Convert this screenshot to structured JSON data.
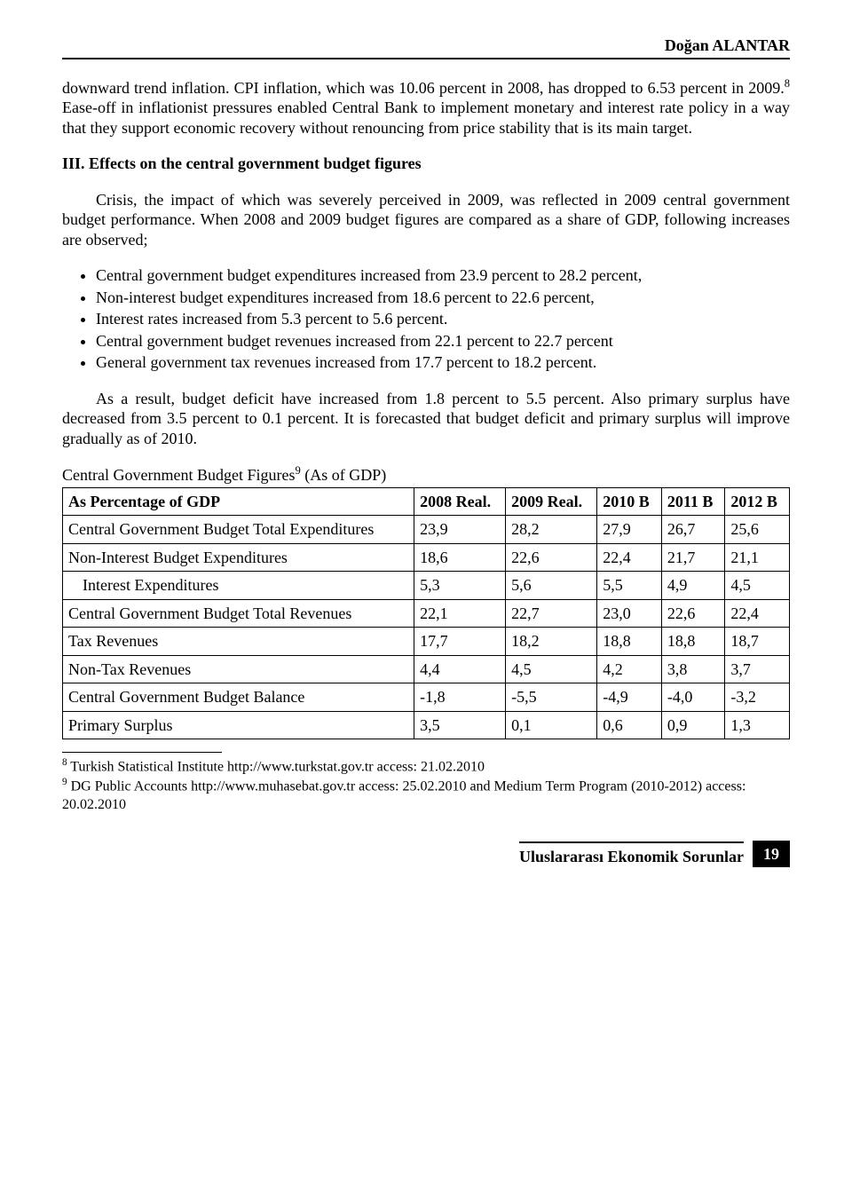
{
  "header": {
    "author": "Doğan ALANTAR"
  },
  "para1": "downward trend inflation. CPI inflation, which was 10.06 percent in 2008, has dropped to 6.53 percent in 2009.",
  "fn_sup_8": "8",
  "para1b": " Ease-off in inflationist pressures enabled Central Bank to implement monetary and interest rate policy in a way that they support economic recovery without renouncing from price stability that is its main target.",
  "section3": "III. Effects on the central government budget figures",
  "para2": "Crisis, the impact of which was severely perceived in 2009, was reflected in 2009 central government budget performance.  When 2008 and 2009 budget figures are compared as a share of GDP, following increases are observed;",
  "bullets": [
    "Central government budget expenditures increased from 23.9 percent to 28.2 percent,",
    "Non-interest budget expenditures increased from 18.6 percent to 22.6 percent,",
    "Interest rates increased from 5.3 percent to 5.6 percent.",
    "Central government budget revenues increased from 22.1 percent to 22.7 percent",
    "General government tax revenues increased from 17.7 percent to 18.2 percent."
  ],
  "para3": "As a result, budget deficit have increased from 1.8 percent to 5.5 percent. Also primary surplus have decreased from 3.5 percent to 0.1 percent. It is forecasted that budget deficit and primary surplus will improve gradually as of 2010.",
  "table": {
    "title_pre": "Central Government Budget Figures",
    "title_sup": "9",
    "title_post": " (As of GDP)",
    "columns": [
      "As Percentage of GDP",
      "2008 Real.",
      "2009 Real.",
      "2010 B",
      "2011 B",
      "2012 B"
    ],
    "rows": [
      {
        "label": "Central Government Budget Total Expenditures",
        "v": [
          "23,9",
          "28,2",
          "27,9",
          "26,7",
          "25,6"
        ],
        "indent": false
      },
      {
        "label": "Non-Interest Budget Expenditures",
        "v": [
          "18,6",
          "22,6",
          "22,4",
          "21,7",
          "21,1"
        ],
        "indent": false
      },
      {
        "label": "Interest Expenditures",
        "v": [
          "5,3",
          "5,6",
          "5,5",
          "4,9",
          "4,5"
        ],
        "indent": true
      },
      {
        "label": "Central Government Budget Total Revenues",
        "v": [
          "22,1",
          "22,7",
          "23,0",
          "22,6",
          "22,4"
        ],
        "indent": false
      },
      {
        "label": "Tax Revenues",
        "v": [
          "17,7",
          "18,2",
          "18,8",
          "18,8",
          "18,7"
        ],
        "indent": false
      },
      {
        "label": "Non-Tax Revenues",
        "v": [
          "4,4",
          "4,5",
          "4,2",
          "3,8",
          "3,7"
        ],
        "indent": false
      },
      {
        "label": "Central Government Budget Balance",
        "v": [
          "-1,8",
          "-5,5",
          "-4,9",
          "-4,0",
          "-3,2"
        ],
        "indent": false
      },
      {
        "label": "Primary Surplus",
        "v": [
          "3,5",
          "0,1",
          "0,6",
          "0,9",
          "1,3"
        ],
        "indent": false
      }
    ]
  },
  "footnotes": {
    "f8_sup": "8",
    "f8": " Turkish Statistical Institute http://www.turkstat.gov.tr access: 21.02.2010",
    "f9_sup": "9",
    "f9": "  DG Public Accounts http://www.muhasebat.gov.tr access: 25.02.2010 and Medium Term Program (2010-2012) access: 20.02.2010"
  },
  "footer": {
    "journal": "Uluslararası Ekonomik Sorunlar",
    "page": "19"
  }
}
